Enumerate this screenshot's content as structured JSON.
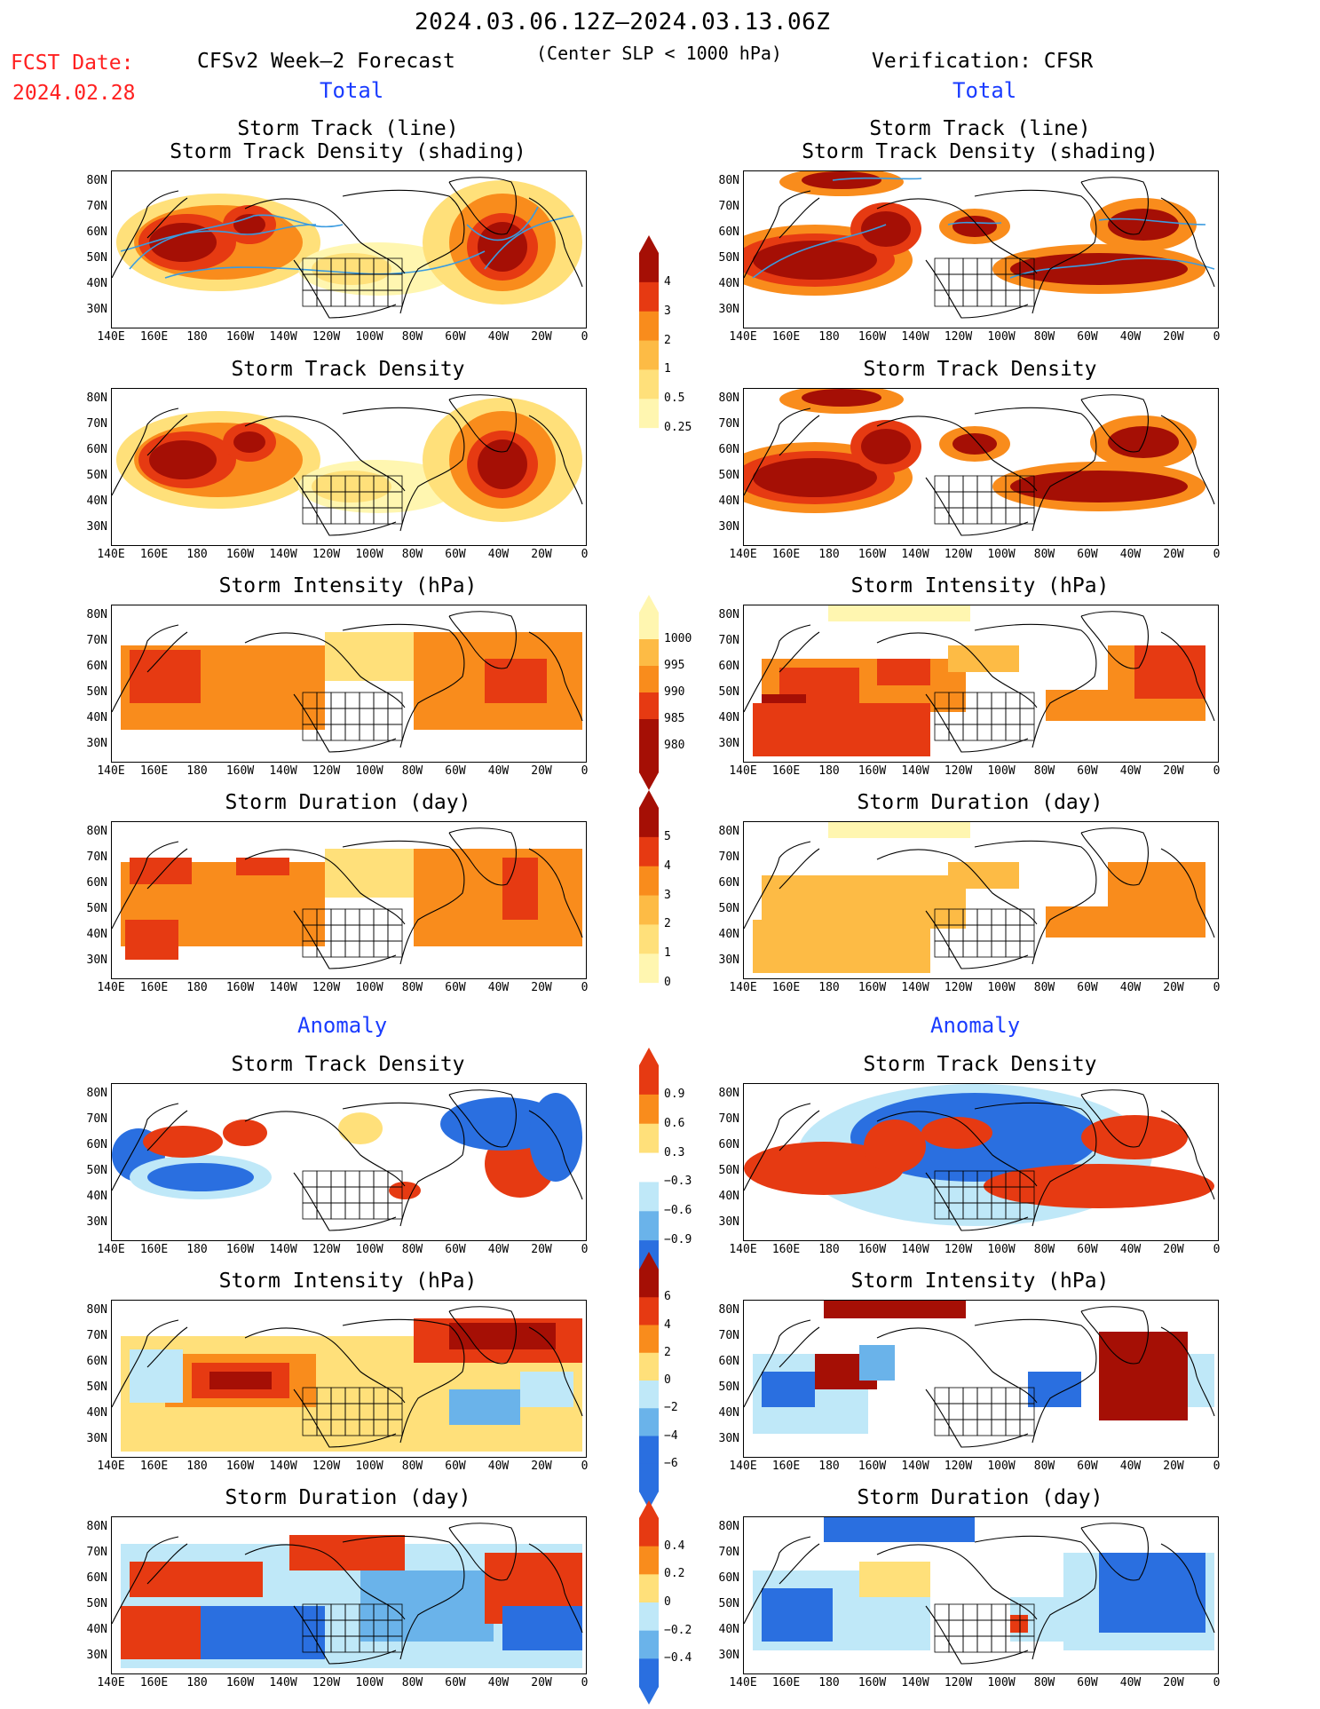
{
  "header": {
    "title": "2024.03.06.12Z–2024.03.13.06Z",
    "subtitle": "(Center SLP < 1000 hPa)",
    "fcst_label": "FCST Date:",
    "fcst_date": "2024.02.28",
    "left_heading": "CFSv2 Week–2 Forecast",
    "right_heading": "Verification: CFSR",
    "total_label": "Total",
    "anomaly_label": "Anomaly"
  },
  "panel_titles": {
    "track_line": "Storm Track (line)",
    "track_shading": "Storm Track Density (shading)",
    "density": "Storm Track Density",
    "intensity": "Storm Intensity (hPa)",
    "duration": "Storm Duration (day)"
  },
  "lat_labels": [
    "80N",
    "70N",
    "60N",
    "50N",
    "40N",
    "30N"
  ],
  "lon_labels": [
    "140E",
    "160E",
    "180",
    "160W",
    "140W",
    "120W",
    "100W",
    "80W",
    "60W",
    "40W",
    "20W",
    "0"
  ],
  "colorbars": {
    "density": [
      "4",
      "3",
      "2",
      "1",
      "0.5",
      "0.25"
    ],
    "intensity": [
      "1000",
      "995",
      "990",
      "985",
      "980"
    ],
    "duration": [
      "5",
      "4",
      "3",
      "2",
      "1",
      "0"
    ],
    "anom_density": [
      "0.9",
      "0.6",
      "0.3",
      "−0.3",
      "−0.6",
      "−0.9"
    ],
    "anom_intensity": [
      "6",
      "4",
      "2",
      "0",
      "−2",
      "−4",
      "−6"
    ],
    "anom_duration": [
      "0.4",
      "0.2",
      "0",
      "−0.2",
      "−0.4"
    ]
  },
  "colors": {
    "pale_yellow": "#fff6b0",
    "light_yellow": "#ffe07a",
    "light_orange": "#fdbb45",
    "orange": "#f98c1c",
    "red": "#e63a12",
    "dark_red": "#a50f05",
    "light_blue": "#bfe8f8",
    "mid_blue": "#6ab3ea",
    "blue": "#2a6fe0",
    "track_line": "#3a9be0",
    "fcst_red": "#ff2020",
    "label_blue": "#1a3cff"
  }
}
